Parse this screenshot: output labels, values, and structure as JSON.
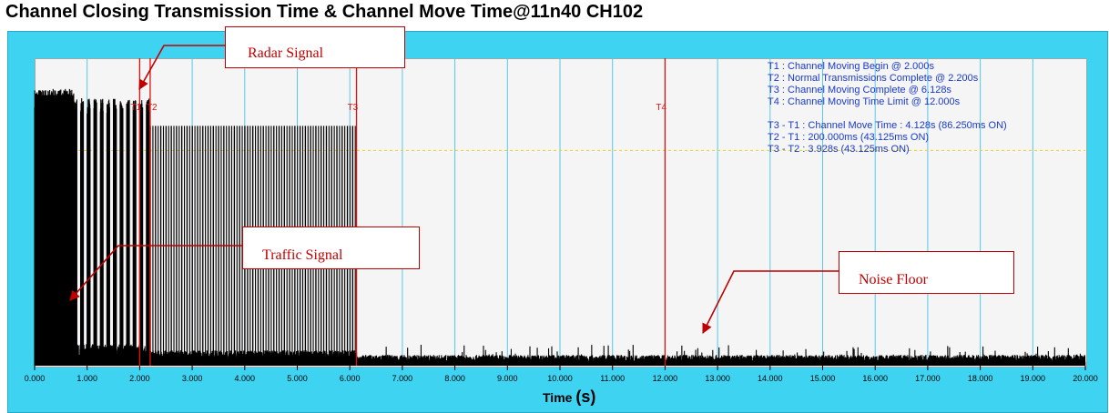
{
  "chart_data": {
    "type": "line",
    "title": "Channel Closing Transmission Time & Channel Move Time@11n40 CH102",
    "xlabel": "Time",
    "xunit": "(s)",
    "xlim": [
      0,
      20
    ],
    "ylim": [
      0,
      1
    ],
    "grid": true,
    "x_ticks": [
      "0.000",
      "1.000",
      "2.000",
      "3.000",
      "4.000",
      "5.000",
      "6.000",
      "7.000",
      "8.000",
      "9.000",
      "10.000",
      "11.000",
      "12.000",
      "13.000",
      "14.000",
      "15.000",
      "16.000",
      "17.000",
      "18.000",
      "19.000",
      "20.000"
    ],
    "markers": [
      {
        "label": "T1",
        "x": 2.0
      },
      {
        "label": "T2",
        "x": 2.2
      },
      {
        "label": "T3",
        "x": 6.128
      },
      {
        "label": "T4",
        "x": 12.0
      }
    ],
    "info_lines": [
      "T1 : Channel Moving Begin @ 2.000s",
      "T2 : Normal Transmissions Complete @ 2.200s",
      "T3 : Channel Moving Complete @ 6.128s",
      "T4 : Channel Moving Time Limit @ 12.000s",
      "",
      "T3 - T1 : Channel Move Time : 4.128s (86.250ms ON)",
      "T2 - T1 : 200.000ms (43.125ms ON)",
      "T3 - T2 : 3.928s (43.125ms ON)"
    ],
    "threshold_level": 0.7,
    "annotations": [
      {
        "text": "Radar Signal",
        "target_x": 2.0
      },
      {
        "text": "Traffic Signal",
        "target_x": 0.6
      },
      {
        "text": "Noise Floor",
        "target_x": 12.7
      }
    ]
  }
}
